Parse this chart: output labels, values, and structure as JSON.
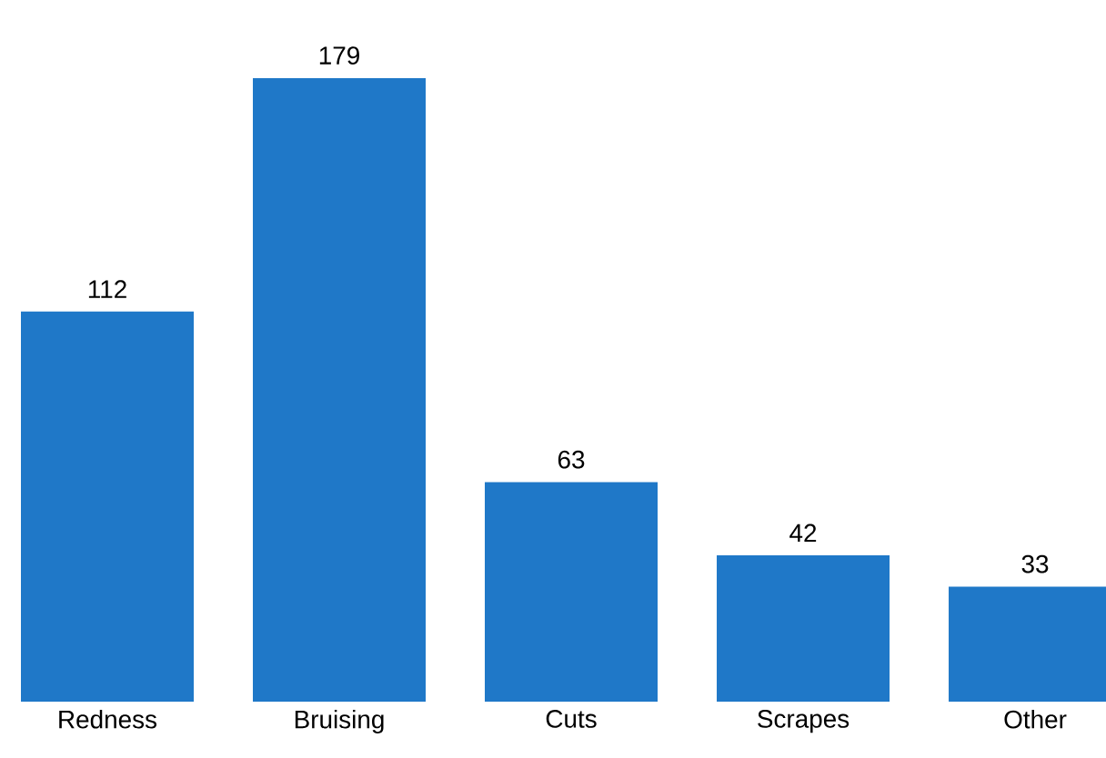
{
  "chart_data": {
    "type": "bar",
    "categories": [
      "Redness",
      "Bruising",
      "Cuts",
      "Scrapes",
      "Other"
    ],
    "values": [
      112,
      179,
      63,
      42,
      33
    ],
    "color": "#1f78c8",
    "data_labels": true
  }
}
